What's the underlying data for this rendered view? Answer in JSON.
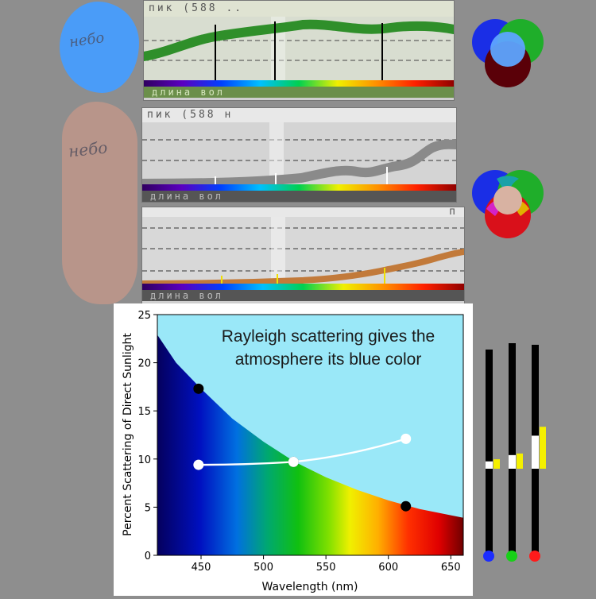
{
  "sky_labels": {
    "clear": "небо",
    "sunset": "небо"
  },
  "strips": [
    {
      "top": "пик (588 ..",
      "bottom": "длина вол"
    },
    {
      "top": "пик (588 н",
      "bottom": "длина вол"
    },
    {
      "top": "п",
      "bottom": "длина вол"
    }
  ],
  "venn": [
    {
      "colors": [
        "#1a2ee6",
        "#1fae2a",
        "#5a0008"
      ],
      "overlap": "#5ea4ff"
    },
    {
      "colors": [
        "#1a2ee6",
        "#1fae2a",
        "#d9101a"
      ],
      "overlap": "#d8b2a2"
    }
  ],
  "chart_data": {
    "type": "line",
    "title": "Rayleigh scattering gives the atmosphere its blue color",
    "title_lines": [
      "Rayleigh scattering gives the",
      "atmosphere its blue color"
    ],
    "xlabel": "Wavelength (nm)",
    "ylabel": "Percent Scattering of Direct Sunlight",
    "xlim": [
      415,
      660
    ],
    "ylim": [
      0,
      25
    ],
    "xticks": [
      450,
      500,
      550,
      600,
      650
    ],
    "yticks": [
      0,
      5,
      10,
      15,
      20,
      25
    ],
    "curve": {
      "name": "scattering",
      "x": [
        415,
        430,
        450,
        475,
        500,
        525,
        550,
        575,
        600,
        625,
        660
      ],
      "y": [
        22.9,
        20.0,
        17.3,
        14.2,
        11.8,
        9.7,
        8.1,
        6.8,
        5.7,
        4.8,
        3.9
      ]
    },
    "black_points": {
      "x": [
        448,
        524,
        614
      ],
      "y": [
        17.3,
        9.7,
        5.1
      ]
    },
    "white_points": {
      "x": [
        448,
        524,
        614
      ],
      "y": [
        9.4,
        9.7,
        12.1
      ]
    },
    "grid": false
  },
  "bars": [
    {
      "color": "#1b2cff",
      "white": 10.6,
      "yellow": 11.0
    },
    {
      "color": "#18d018",
      "white": 11.8,
      "yellow": 12.1
    },
    {
      "color": "#ff1b1b",
      "white": 15.5,
      "yellow": 17.2
    }
  ]
}
